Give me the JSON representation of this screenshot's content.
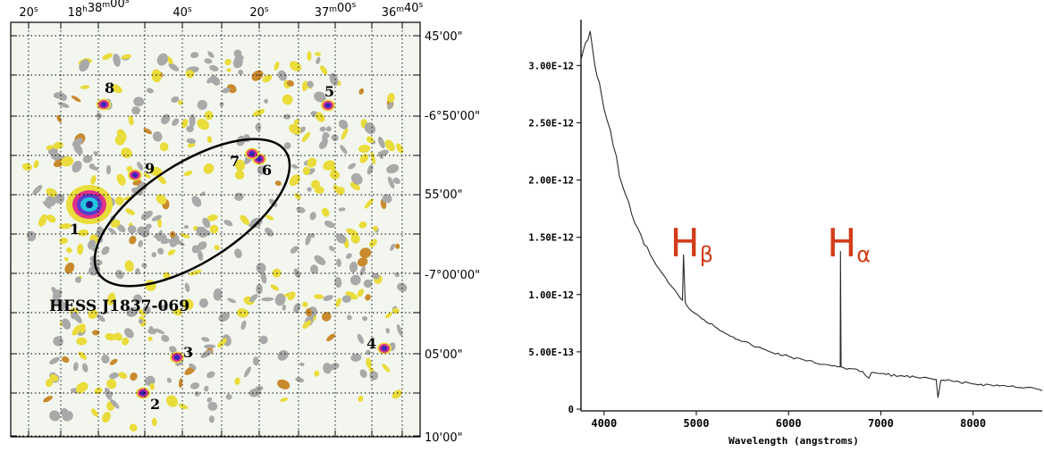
{
  "left_panel": {
    "ra_ticks": [
      {
        "label": "20",
        "sup": "s",
        "x": 32
      },
      {
        "label": "18",
        "sup": "h",
        "label2": "38",
        "sup2": "m",
        "label3": "00",
        "sup3": "s",
        "x": 110
      },
      {
        "label": "40",
        "sup": "s",
        "x": 204
      },
      {
        "label": "20",
        "sup": "s",
        "x": 290
      },
      {
        "label": "37",
        "sup": "m",
        "label2": "00",
        "sup2": "s",
        "x": 375
      },
      {
        "label": "36",
        "sup": "m",
        "label2": "40",
        "sup2": "s",
        "x": 450
      }
    ],
    "dec_ticks": [
      "45'00\"",
      "-6°50'00\"",
      "55'00\"",
      "-7°00'00\"",
      "05'00\"",
      "10'00\""
    ],
    "source_label": "HESS J1837-069",
    "sources": [
      {
        "id": "1"
      },
      {
        "id": "2"
      },
      {
        "id": "3"
      },
      {
        "id": "4"
      },
      {
        "id": "5"
      },
      {
        "id": "6"
      },
      {
        "id": "7"
      },
      {
        "id": "8"
      },
      {
        "id": "9"
      }
    ]
  },
  "chart_data": {
    "type": "line",
    "xlabel": "Wavelength (angstroms)",
    "ylabel": "",
    "xlim": [
      3750,
      8750
    ],
    "ylim": [
      0,
      3.4e-12
    ],
    "x_ticks": [
      4000,
      5000,
      6000,
      7000,
      8000
    ],
    "y_ticks": [
      {
        "value": 0,
        "label": "0"
      },
      {
        "value": 5e-13,
        "label": "5.00E-13"
      },
      {
        "value": 1e-12,
        "label": "1.00E-12"
      },
      {
        "value": 1.5e-12,
        "label": "1.50E-12"
      },
      {
        "value": 2e-12,
        "label": "2.00E-12"
      },
      {
        "value": 2.5e-12,
        "label": "2.50E-12"
      },
      {
        "value": 3e-12,
        "label": "3.00E-12"
      }
    ],
    "series": [
      {
        "x": [
          3750,
          3800,
          3850,
          3900,
          3950,
          4000,
          4100,
          4200,
          4300,
          4400,
          4500,
          4600,
          4700,
          4800,
          4850,
          4861,
          4880,
          4900,
          5000,
          5200,
          5400,
          5600,
          5800,
          6000,
          6200,
          6400,
          6500,
          6560,
          6563,
          6570,
          6600,
          6800,
          6870,
          6900,
          7000,
          7200,
          7400,
          7600,
          7620,
          7650,
          7700,
          7800,
          8000,
          8200,
          8400,
          8600,
          8750
        ],
        "y": [
          3.05e-12,
          3.2e-12,
          3.3e-12,
          3e-12,
          2.85e-12,
          2.62e-12,
          2.3e-12,
          1.95e-12,
          1.7e-12,
          1.52e-12,
          1.35e-12,
          1.22e-12,
          1.1e-12,
          1e-12,
          9.5e-13,
          1.35e-12,
          9.3e-13,
          9e-13,
          8.3e-13,
          7.2e-13,
          6.3e-13,
          5.6e-13,
          5e-13,
          4.6e-13,
          4.2e-13,
          3.9e-13,
          3.8e-13,
          3.7e-13,
          1.38e-12,
          3.7e-13,
          3.6e-13,
          3.3e-13,
          2.7e-13,
          3.2e-13,
          3.1e-13,
          2.9e-13,
          2.75e-13,
          2.6e-13,
          1e-13,
          2.5e-13,
          2.5e-13,
          2.4e-13,
          2.2e-13,
          2.1e-13,
          2e-13,
          1.9e-13,
          1.6e-13
        ]
      }
    ],
    "annotations": [
      {
        "main": "H",
        "sub": "β",
        "x": 4861
      },
      {
        "main": "H",
        "sub": "α",
        "x": 6563
      }
    ],
    "annotation_color": "#d23c1a"
  }
}
